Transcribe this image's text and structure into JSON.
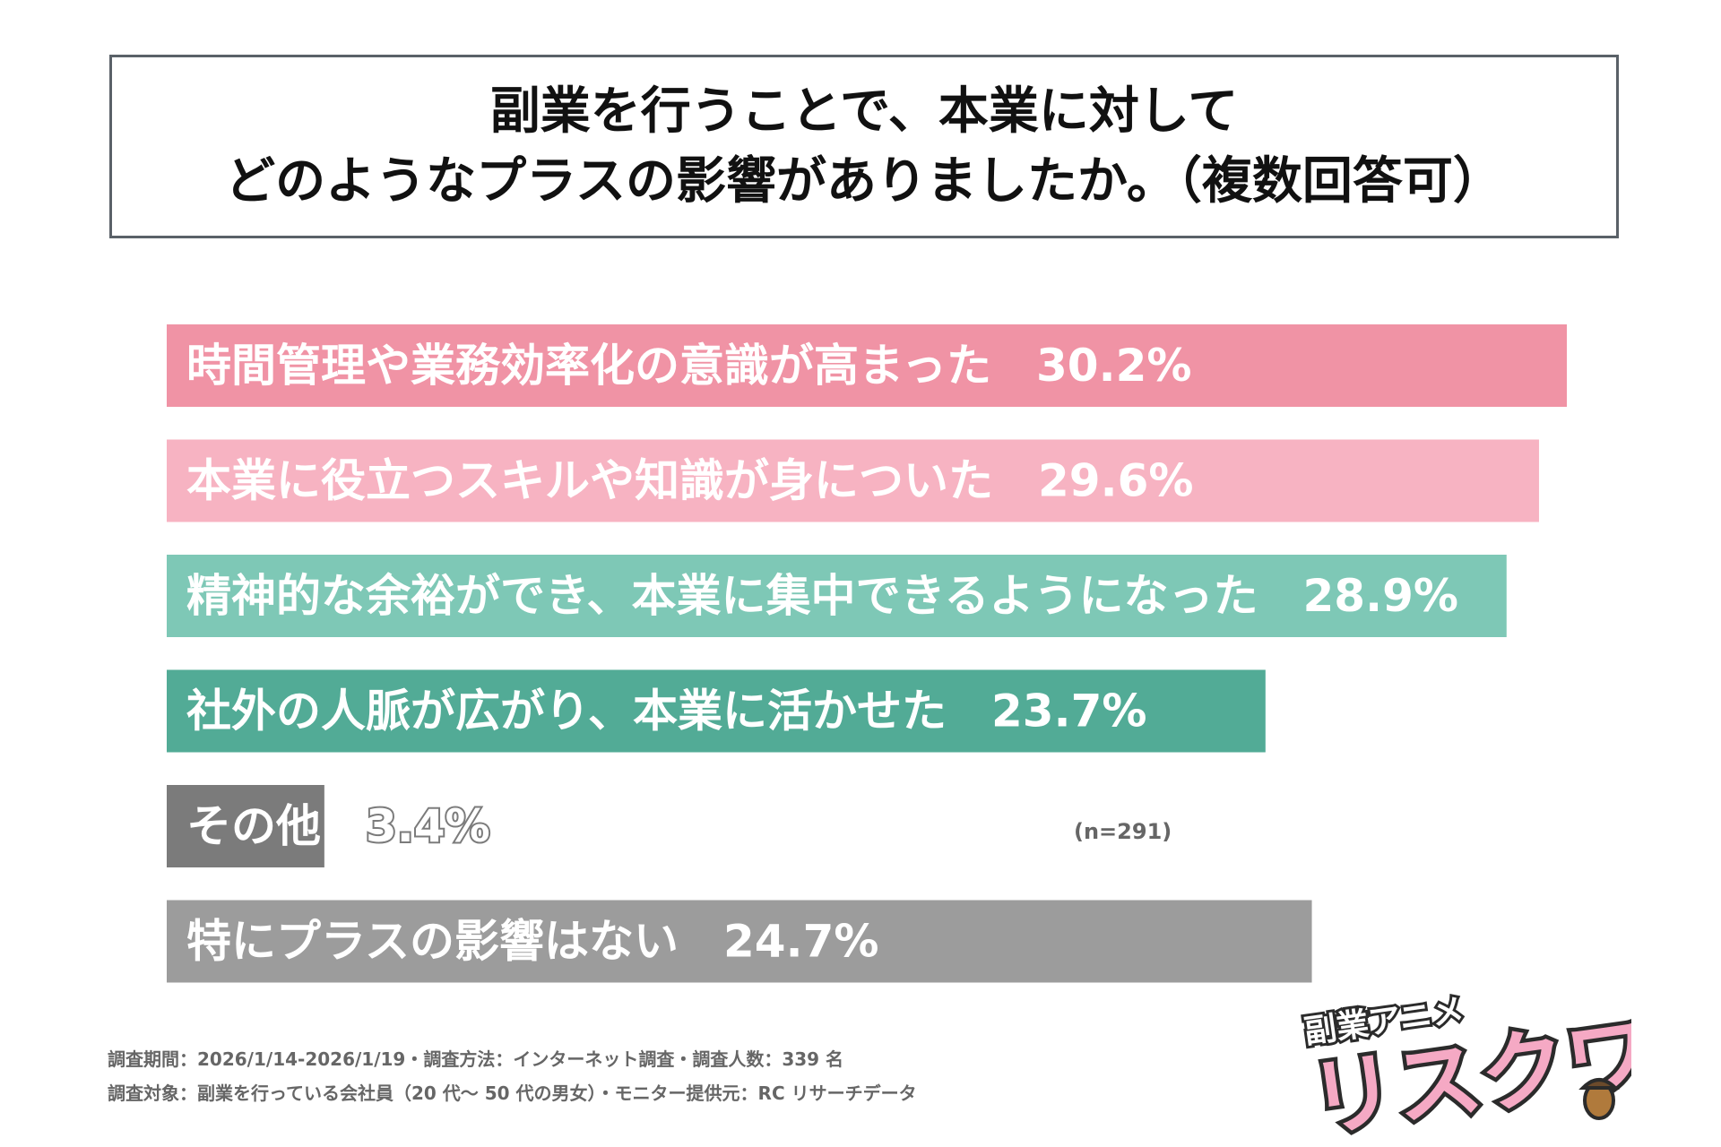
{
  "header": {
    "title_line1": "副業を行うことで、本業に対して",
    "title_line2": "どのようなプラスの影響がありましたか。（複数回答可）"
  },
  "chart_data": {
    "type": "bar",
    "orientation": "horizontal",
    "title": "副業を行うことで、本業に対して どのようなプラスの影響がありましたか。（複数回答可）",
    "unit": "%",
    "xlim": [
      0,
      30.2
    ],
    "categories": [
      "時間管理や業務効率化の意識が高まった",
      "本業に役立つスキルや知識が身についた",
      "精神的な余裕ができ、本業に集中できるようになった",
      "社外の人脈が広がり、本業に活かせた",
      "その他",
      "特にプラスの影響はない"
    ],
    "values": [
      30.2,
      29.6,
      28.9,
      23.7,
      3.4,
      24.7
    ],
    "labels": [
      "30.2%",
      "29.6%",
      "28.9%",
      "23.7%",
      "3.4%",
      "24.7%"
    ],
    "colors": [
      "#f093a5",
      "#f7b3c2",
      "#7ec8b6",
      "#52ab96",
      "#7b7b7b",
      "#9c9c9c"
    ],
    "sample_size": "(n=291)"
  },
  "footer": {
    "line1": "調査期間：2026/1/14-2026/1/19・調査方法：インターネット調査・調査人数：339 名",
    "line2": "調査対象：副業を行っている会社員（20 代～ 50 代の男女）・モニター提供元：RC リサーチデータ"
  },
  "logo": {
    "small_text": "副業アニメ",
    "big_text": "リスクワ"
  }
}
